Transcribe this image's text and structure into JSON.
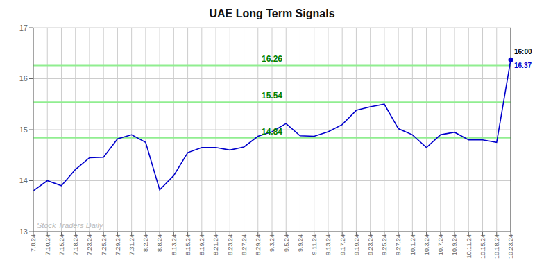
{
  "chart_data": {
    "type": "line",
    "title": "UAE Long Term Signals",
    "color": "#0000cc",
    "grid": true,
    "grid_color": "#cccccc",
    "background_color": "#ffffff",
    "categories": [
      "7.8.24",
      "7.10.24",
      "7.15.24",
      "7.18.24",
      "7.23.24",
      "7.25.24",
      "7.29.24",
      "7.31.24",
      "8.2.24",
      "8.8.24",
      "8.13.24",
      "8.15.24",
      "8.19.24",
      "8.21.24",
      "8.23.24",
      "8.27.24",
      "8.29.24",
      "9.3.24",
      "9.5.24",
      "9.9.24",
      "9.11.24",
      "9.13.24",
      "9.17.24",
      "9.19.24",
      "9.23.24",
      "9.25.24",
      "9.27.24",
      "10.1.24",
      "10.3.24",
      "10.7.24",
      "10.9.24",
      "10.11.24",
      "10.15.24",
      "10.18.24",
      "10.23.24"
    ],
    "values": [
      13.8,
      14.0,
      13.9,
      14.22,
      14.45,
      14.46,
      14.82,
      14.9,
      14.75,
      13.82,
      14.1,
      14.55,
      14.65,
      14.65,
      14.6,
      14.66,
      14.87,
      14.96,
      15.12,
      14.88,
      14.87,
      14.96,
      15.1,
      15.38,
      15.45,
      15.5,
      15.02,
      14.9,
      14.65,
      14.9,
      14.95,
      14.8,
      14.8,
      14.75,
      16.37
    ],
    "ylim": [
      13,
      17
    ],
    "yticks": [
      13,
      14,
      15,
      16,
      17
    ],
    "reference_lines": [
      {
        "value": 14.84,
        "label": "14.84",
        "color": "#90ee90",
        "label_color": "#008000"
      },
      {
        "value": 15.54,
        "label": "15.54",
        "color": "#90ee90",
        "label_color": "#008000"
      },
      {
        "value": 16.26,
        "label": "16.26",
        "color": "#90ee90",
        "label_color": "#008000"
      }
    ],
    "last_point": {
      "label": "16:00",
      "label_color": "#000000",
      "value_label": "16.37",
      "value_color": "#0000cc",
      "line_color": "#444444"
    },
    "watermark": {
      "text": "Stock Traders Daily",
      "color": "#bbbbbb"
    }
  }
}
